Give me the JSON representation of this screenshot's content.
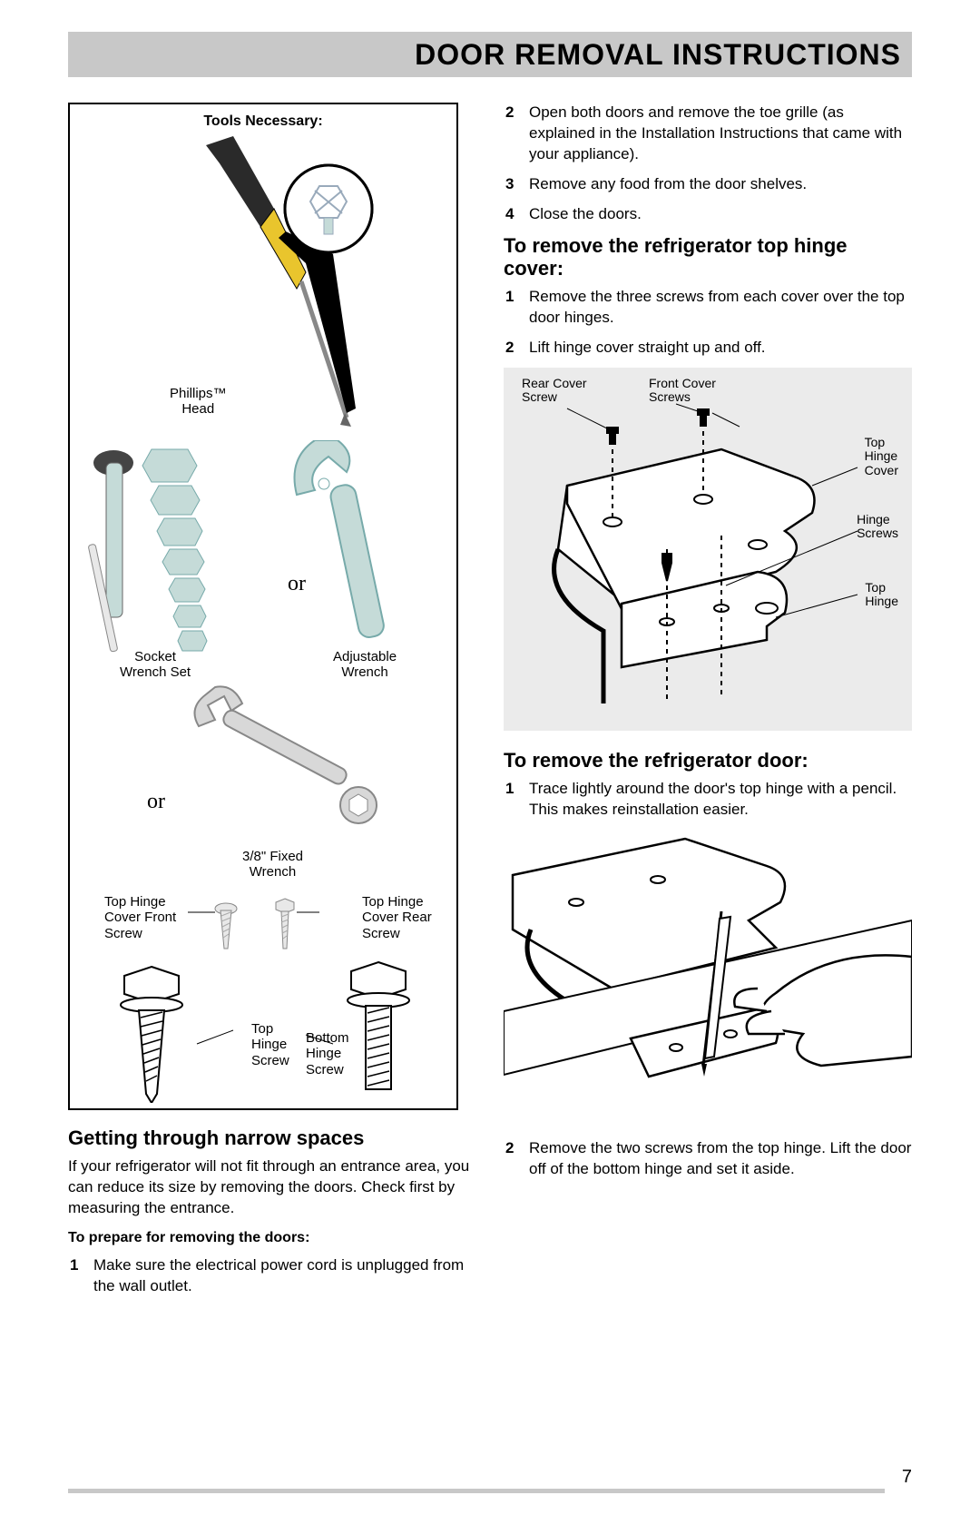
{
  "page": {
    "title": "DOOR REMOVAL INSTRUCTIONS",
    "number": "7"
  },
  "colors": {
    "title_bg": "#c8c8c8",
    "diagram_bg": "#ebebeb",
    "tool_steel": "#c5dbd8",
    "tool_steel_dark": "#8fb5af",
    "screwdriver_handle": "#e9c52d",
    "screwdriver_shaft": "#2a2a2a"
  },
  "tools_box": {
    "heading": "Tools Necessary:",
    "phillips_label": "Phillips™\nHead",
    "socket_label": "Socket\nWrench Set",
    "adjustable_label": "Adjustable\nWrench",
    "fixed_label": "3/8\" Fixed\nWrench",
    "or1": "or",
    "or2": "or",
    "screw_labels": {
      "front_cover": "Top Hinge\nCover Front\nScrew",
      "rear_cover": "Top Hinge\nCover Rear\nScrew",
      "top_hinge": "Top\nHinge\nScrew",
      "bottom_hinge": "Bottom\nHinge\nScrew"
    }
  },
  "left": {
    "h2": "Getting through narrow spaces",
    "body": "If your refrigerator will not fit through an entrance area, you can reduce its size by removing the doors. Check first by measuring the entrance.",
    "sub": "To prepare for removing the doors:",
    "steps": [
      "Make sure the electrical power cord is unplugged from the wall outlet."
    ]
  },
  "right": {
    "continued_steps": [
      {
        "n": "2",
        "t": "Open both doors and remove the toe grille (as explained in the Installation Instructions that came with your appliance)."
      },
      {
        "n": "3",
        "t": "Remove any food from the door shelves."
      },
      {
        "n": "4",
        "t": "Close the doors."
      }
    ],
    "h2a": "To remove the refrigerator top hinge cover:",
    "steps_a": [
      {
        "n": "1",
        "t": "Remove the three screws from each cover over the top door hinges."
      },
      {
        "n": "2",
        "t": "Lift hinge cover straight up and off."
      }
    ],
    "diagram1_labels": {
      "rear_screw": "Rear Cover\nScrew",
      "front_screws": "Front Cover\nScrews",
      "top_cover": "Top\nHinge\nCover",
      "hinge_screws": "Hinge\nScrews",
      "top_hinge": "Top\nHinge"
    },
    "h2b": "To remove the refrigerator door:",
    "steps_b": [
      {
        "n": "1",
        "t": "Trace lightly around the door's top hinge with a pencil. This makes reinstallation easier."
      }
    ],
    "steps_b2": [
      {
        "n": "2",
        "t": "Remove the two screws from the top hinge. Lift the door off of the bottom hinge and set it aside."
      }
    ]
  }
}
